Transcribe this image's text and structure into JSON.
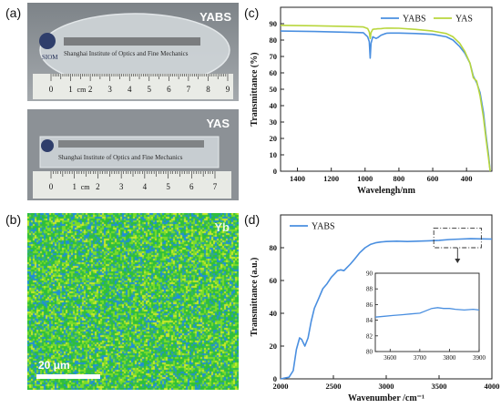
{
  "panels": {
    "a": "(a)",
    "b": "(b)",
    "c": "(c)",
    "d": "(d)"
  },
  "photos": {
    "top_tag": "YABS",
    "bottom_tag": "YAS",
    "top_ruler_labels": [
      "0",
      "1",
      "cm",
      "2",
      "3",
      "4",
      "5",
      "6",
      "7",
      "8",
      "9"
    ],
    "bottom_ruler_labels": [
      "0",
      "1",
      "cm",
      "2",
      "3",
      "4",
      "5",
      "6",
      "7"
    ],
    "top_logo": "SIOM",
    "top_caption": "Shanghai Institute of Optics and Fine Mechanics",
    "bottom_caption": "Shanghai Institute of Optics and Fine Mechanics",
    "glass_color": "#c9cfd3",
    "photo_bg": "#8f9498"
  },
  "map": {
    "tag": "Yb",
    "scalebar": "20 μm",
    "colors": [
      "#2fbf3a",
      "#7bdc2a",
      "#1f8fd6",
      "#c9ea2a",
      "#33b07a"
    ]
  },
  "chart_data": [
    {
      "type": "line",
      "title": "",
      "xlabel": "Wavelengh/nm",
      "ylabel": "Transmittance (%)",
      "xlim": [
        1500,
        250
      ],
      "ylim": [
        0,
        100
      ],
      "xticks": [
        1400,
        1200,
        1000,
        800,
        600,
        400
      ],
      "yticks": [
        0,
        10,
        20,
        30,
        40,
        50,
        60,
        70,
        80,
        90
      ],
      "legend_position": "top-right",
      "series": [
        {
          "name": "YABS",
          "color": "#4a8fe0",
          "x": [
            1500,
            1300,
            1100,
            1010,
            985,
            975,
            970,
            965,
            955,
            945,
            935,
            925,
            905,
            885,
            870,
            850,
            800,
            700,
            600,
            520,
            480,
            440,
            410,
            380,
            360,
            340,
            320,
            300,
            285,
            270,
            260
          ],
          "y": [
            85.5,
            85.2,
            84.8,
            84.5,
            82,
            79,
            69,
            78,
            82,
            81.5,
            81,
            81.5,
            83,
            83.8,
            84.2,
            84.3,
            84.3,
            84.0,
            83.5,
            82,
            80,
            76,
            72,
            66,
            58,
            54,
            48,
            36,
            22,
            10,
            0
          ]
        },
        {
          "name": "YAS",
          "color": "#b8d63c",
          "x": [
            1500,
            1300,
            1100,
            1010,
            985,
            975,
            970,
            965,
            955,
            945,
            935,
            925,
            905,
            885,
            870,
            850,
            800,
            700,
            600,
            520,
            480,
            440,
            410,
            380,
            360,
            340,
            320,
            300,
            285,
            270,
            260
          ],
          "y": [
            89,
            88.7,
            88.3,
            88,
            87,
            85,
            81,
            84.5,
            86.5,
            86.7,
            86.8,
            86.9,
            87,
            87.2,
            87.3,
            87.3,
            87.2,
            86.5,
            85.5,
            84,
            82,
            78,
            73,
            66,
            57,
            55,
            46,
            33,
            20,
            8,
            0
          ]
        }
      ]
    },
    {
      "type": "line",
      "title": "",
      "xlabel": "Wavenumber /cm⁻¹",
      "ylabel": "Transmittance (a.u.)",
      "xlim": [
        2000,
        4000
      ],
      "ylim": [
        0,
        100
      ],
      "xticks": [
        2000,
        2500,
        3000,
        3500,
        4000
      ],
      "yticks": [
        0,
        20,
        40,
        60,
        80
      ],
      "legend_position": "top-left",
      "series": [
        {
          "name": "YABS",
          "color": "#4a8fe0",
          "x": [
            2000,
            2080,
            2120,
            2150,
            2180,
            2200,
            2230,
            2260,
            2290,
            2320,
            2360,
            2400,
            2440,
            2480,
            2510,
            2540,
            2570,
            2600,
            2630,
            2660,
            2700,
            2750,
            2800,
            2850,
            2900,
            2950,
            3000,
            3100,
            3200,
            3300,
            3400,
            3500,
            3600,
            3700,
            3800,
            3900,
            4000
          ],
          "y": [
            0,
            1,
            5,
            18,
            25,
            24,
            20,
            25,
            35,
            43,
            49,
            55,
            58,
            62,
            64,
            66,
            66.5,
            66,
            68,
            70,
            73,
            77,
            80,
            82,
            83,
            83.5,
            83.8,
            84,
            83.8,
            84,
            84.2,
            84.5,
            85,
            85.3,
            85.5,
            85.4,
            85.3
          ]
        }
      ],
      "inset": {
        "xlim": [
          3550,
          3900
        ],
        "ylim": [
          80,
          90
        ],
        "xticks": [
          3600,
          3700,
          3800,
          3900
        ],
        "yticks": [
          80,
          82,
          84,
          86,
          88,
          90
        ],
        "x": [
          3550,
          3580,
          3610,
          3640,
          3670,
          3700,
          3720,
          3740,
          3760,
          3780,
          3800,
          3820,
          3850,
          3880,
          3900
        ],
        "y": [
          84.4,
          84.5,
          84.6,
          84.7,
          84.8,
          84.9,
          85.2,
          85.5,
          85.6,
          85.5,
          85.5,
          85.4,
          85.3,
          85.4,
          85.3
        ]
      }
    }
  ]
}
